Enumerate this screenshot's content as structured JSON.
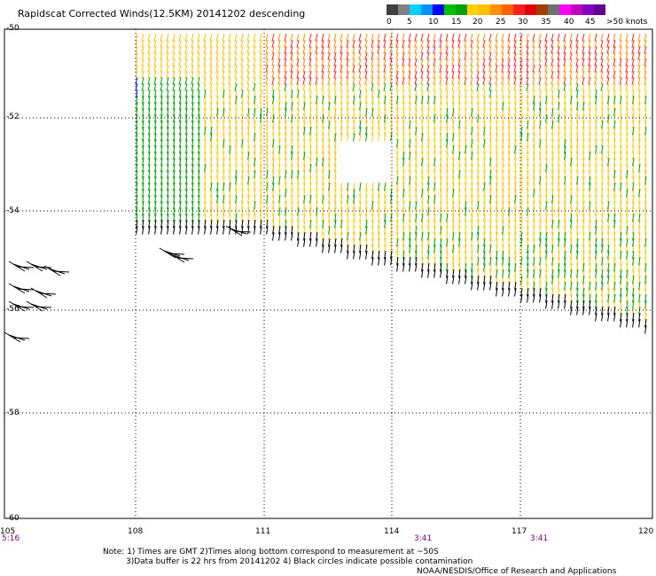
{
  "header": {
    "title": "Rapidscat Corrected Winds(12.5KM) 20141202 descending"
  },
  "legend": {
    "colors": [
      "#404040",
      "#808080",
      "#00d0ff",
      "#0090ff",
      "#0000ff",
      "#00c000",
      "#00a000",
      "#ffd000",
      "#ffc000",
      "#ff9000",
      "#ff6000",
      "#ff2020",
      "#e00000",
      "#a04000",
      "#707070",
      "#ff00ff",
      "#c000c0",
      "#8000c0",
      "#600090"
    ],
    "labels": [
      "0",
      "5",
      "10",
      "15",
      "20",
      "25",
      "30",
      "35",
      "40",
      "45",
      ">50 knots"
    ]
  },
  "axes": {
    "lat_labels": [
      "-50",
      "-52",
      "-54",
      "-56",
      "-58",
      "-60"
    ],
    "lon_labels": [
      "105",
      "108",
      "111",
      "114",
      "117",
      "120"
    ]
  },
  "time_labels": [
    "5:16",
    "3:41",
    "3:41"
  ],
  "notes": [
    "Note: 1) Times are GMT 2)Times along bottom correspond to measurement at ~50S",
    "3)Data buffer is 22 hrs from 20141202 4) Black circles indicate possible contamination",
    "NOAA/NESDIS/Office of Research and Applications"
  ]
}
